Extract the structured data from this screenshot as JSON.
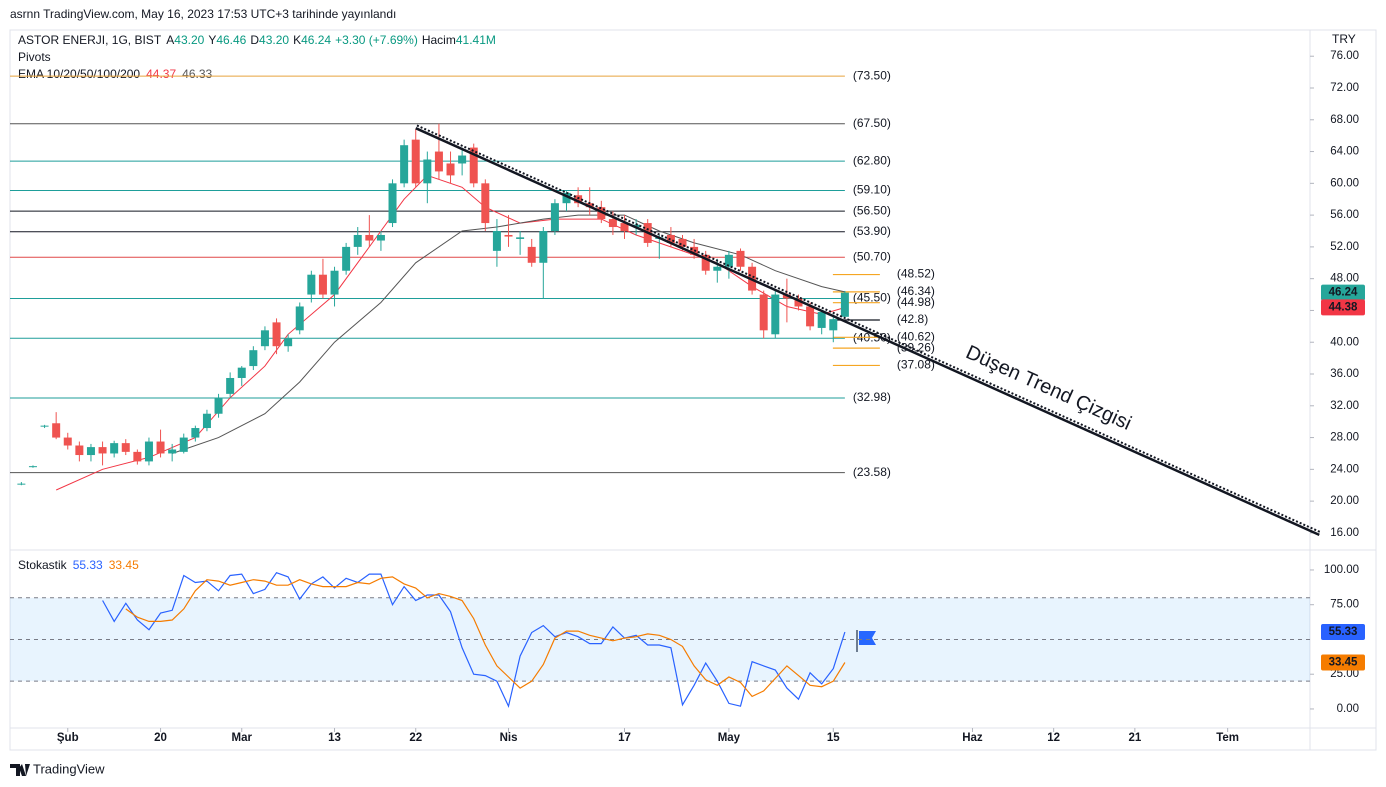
{
  "header": {
    "published": "asrnn TradingView.com, May 16, 2023 17:53 UTC+3 tarihinde yayınlandı",
    "currency": "TRY",
    "footer": "TradingView"
  },
  "chart_data": [
    {
      "type": "candlestick",
      "title": "ASTOR ENERJI, 1G, BIST",
      "ohlc": [
        {
          "key": "A",
          "value": "43.20"
        },
        {
          "key": "Y",
          "value": "46.46"
        },
        {
          "key": "D",
          "value": "43.20"
        },
        {
          "key": "K",
          "value": "46.24"
        }
      ],
      "change": "+3.30 (+7.69%)",
      "volume_key": "Hacim",
      "volume": "41.41M",
      "indicator": "Pivots",
      "ema_legend": {
        "name": "EMA 10/20/50/100/200",
        "values": [
          "44.37",
          "46.33"
        ]
      },
      "colors": {
        "up": "#26a69a",
        "down": "#ef5350"
      },
      "xlim": [
        -0.98,
        111.1
      ],
      "xticks": [
        {
          "value": 4,
          "label": "Şub"
        },
        {
          "value": 12,
          "label": "20"
        },
        {
          "value": 19,
          "label": "Mar"
        },
        {
          "value": 27,
          "label": "13"
        },
        {
          "value": 34,
          "label": "22"
        },
        {
          "value": 42,
          "label": "Nis"
        },
        {
          "value": 52,
          "label": "17"
        },
        {
          "value": 61,
          "label": "May"
        },
        {
          "value": 70,
          "label": "15"
        },
        {
          "value": 82,
          "label": "Haz"
        },
        {
          "value": 89,
          "label": "12"
        },
        {
          "value": 96,
          "label": "21"
        },
        {
          "value": 104,
          "label": "Tem"
        }
      ],
      "ylim": [
        14.1,
        79.3
      ],
      "yticks": [
        {
          "value": 76,
          "label": "76.00"
        },
        {
          "value": 72,
          "label": "72.00"
        },
        {
          "value": 68,
          "label": "68.00"
        },
        {
          "value": 64,
          "label": "64.00"
        },
        {
          "value": 60,
          "label": "60.00"
        },
        {
          "value": 56,
          "label": "56.00"
        },
        {
          "value": 52,
          "label": "52.00"
        },
        {
          "value": 48,
          "label": "48.00"
        },
        {
          "value": 44,
          "label": "44.00"
        },
        {
          "value": 40,
          "label": "40.00"
        },
        {
          "value": 36,
          "label": "36.00"
        },
        {
          "value": 32,
          "label": "32.00"
        },
        {
          "value": 28,
          "label": "28.00"
        },
        {
          "value": 24,
          "label": "24.00"
        },
        {
          "value": 20,
          "label": "20.00"
        },
        {
          "value": 16,
          "label": "16.00"
        }
      ],
      "candles": {
        "open": [
          22.2,
          24.3,
          29.4,
          29.8,
          28.0,
          27.0,
          25.8,
          26.8,
          26.0,
          27.3,
          26.2,
          25.0,
          27.5,
          26.0,
          26.2,
          28.0,
          29.2,
          31.0,
          33.5,
          35.5,
          37.0,
          39.5,
          42.5,
          39.5,
          41.5,
          46.0,
          48.5,
          46.0,
          49.0,
          52.0,
          53.5,
          52.8,
          55.0,
          60.0,
          65.5,
          60.0,
          64.0,
          62.5,
          62.5,
          64.5,
          60.0,
          51.5,
          53.5,
          53.0,
          52.0,
          50.0,
          54.0,
          57.5,
          58.5,
          57.5,
          57.0,
          55.5,
          55.0,
          54.5,
          55.0,
          53.0,
          53.5,
          53.0,
          52.0,
          51.0,
          49.0,
          49.5,
          51.5,
          49.5,
          46.0,
          41.0,
          46.0,
          45.5,
          44.5,
          41.8,
          41.5,
          43.2
        ],
        "high": [
          22.4,
          24.5,
          29.6,
          31.2,
          28.6,
          27.5,
          27.2,
          27.5,
          27.6,
          27.8,
          26.5,
          28.0,
          29.0,
          27.2,
          28.5,
          29.5,
          31.5,
          33.5,
          36.2,
          37.0,
          39.5,
          42.0,
          43.0,
          41.0,
          45.0,
          49.0,
          50.5,
          49.5,
          52.5,
          54.5,
          56.0,
          54.0,
          60.5,
          65.5,
          66.8,
          64.0,
          67.5,
          64.0,
          64.5,
          65.0,
          60.5,
          55.5,
          56.0,
          54.0,
          53.0,
          54.5,
          58.0,
          59.0,
          59.5,
          59.5,
          57.8,
          56.5,
          56.0,
          55.5,
          55.5,
          53.5,
          54.5,
          53.5,
          53.0,
          51.5,
          50.5,
          51.5,
          51.8,
          50.0,
          46.5,
          46.5,
          48.0,
          46.0,
          45.0,
          44.0,
          43.5,
          46.46
        ],
        "low": [
          22.0,
          24.2,
          29.2,
          27.8,
          26.5,
          25.0,
          25.0,
          24.5,
          25.5,
          25.8,
          24.6,
          24.5,
          25.5,
          25.0,
          26.0,
          27.5,
          28.8,
          30.5,
          33.0,
          34.5,
          36.5,
          39.0,
          38.5,
          38.8,
          41.0,
          45.0,
          45.5,
          44.5,
          48.5,
          51.0,
          52.0,
          51.5,
          54.5,
          59.5,
          59.5,
          57.5,
          60.5,
          60.0,
          61.0,
          59.5,
          54.0,
          49.5,
          52.0,
          51.0,
          49.5,
          45.5,
          53.5,
          56.5,
          57.0,
          56.0,
          55.0,
          53.5,
          53.0,
          53.5,
          52.0,
          50.5,
          52.0,
          51.5,
          50.5,
          48.5,
          47.5,
          48.0,
          49.0,
          46.0,
          40.5,
          40.5,
          42.5,
          44.0,
          41.5,
          41.0,
          40.0,
          43.2
        ],
        "close": [
          22.2,
          24.4,
          29.5,
          28.0,
          27.0,
          25.8,
          26.8,
          26.0,
          27.3,
          26.2,
          25.0,
          27.5,
          26.0,
          26.5,
          28.0,
          29.2,
          31.0,
          33.0,
          35.5,
          36.8,
          39.0,
          41.5,
          39.5,
          40.5,
          44.5,
          48.5,
          46.0,
          49.0,
          52.0,
          53.5,
          52.8,
          53.5,
          60.0,
          64.8,
          60.0,
          63.0,
          61.5,
          61.0,
          63.5,
          60.0,
          55.0,
          54.0,
          53.3,
          53.2,
          50.0,
          54.0,
          57.5,
          58.8,
          57.5,
          57.0,
          55.5,
          54.5,
          54.0,
          54.8,
          52.5,
          53.2,
          52.5,
          52.0,
          51.0,
          49.0,
          49.5,
          51.0,
          49.5,
          46.5,
          41.5,
          46.0,
          45.5,
          44.5,
          42.0,
          43.8,
          42.9,
          46.24
        ]
      },
      "series": [
        {
          "color": "#f23645",
          "x": [
            3,
            7,
            11,
            15,
            18,
            21,
            23,
            27,
            29,
            31,
            33,
            35,
            38,
            40,
            43,
            46,
            50,
            53,
            57,
            60,
            63,
            66,
            69,
            71
          ],
          "values": [
            21.4,
            24,
            25.5,
            28,
            33,
            37,
            41,
            46,
            50,
            54,
            58,
            61,
            59.5,
            57,
            55,
            55.5,
            55.5,
            53.5,
            51.5,
            50,
            47,
            44.5,
            43.5,
            44.37
          ]
        },
        {
          "color": "#555555",
          "x": [
            13,
            17,
            21,
            24,
            27,
            31,
            34,
            38,
            41,
            45,
            48,
            52,
            55,
            58,
            62,
            65,
            69,
            71
          ],
          "values": [
            26,
            28,
            31,
            35,
            40,
            45,
            50,
            54,
            54.5,
            55.5,
            56,
            56,
            54,
            52.5,
            51,
            49,
            47,
            46.33
          ]
        }
      ],
      "pivots": [
        {
          "value": 73.5,
          "label": "(73.50)",
          "color": "#e8a33d"
        },
        {
          "value": 67.5,
          "label": "(67.50)",
          "color": "#555555"
        },
        {
          "value": 62.8,
          "label": "(62.80)",
          "color": "#1e9e9a"
        },
        {
          "value": 59.1,
          "label": "(59.10)",
          "color": "#1e9e9a"
        },
        {
          "value": 56.5,
          "label": "(56.50)",
          "color": "#131722"
        },
        {
          "value": 53.9,
          "label": "(53.90)",
          "color": "#131722"
        },
        {
          "value": 50.7,
          "label": "(50.70)",
          "color": "#e04848"
        },
        {
          "value": 45.5,
          "label": "(45.50)",
          "color": "#1e9e9a"
        },
        {
          "value": 40.5,
          "label": "(40.50)",
          "color": "#1e9e9a"
        },
        {
          "value": 32.98,
          "label": "(32.98)",
          "color": "#1e9e9a"
        },
        {
          "value": 23.58,
          "label": "(23.58)",
          "color": "#555555"
        }
      ],
      "current_pivots": [
        {
          "value": 48.52,
          "label": "(48.52)",
          "color": "#f5a623"
        },
        {
          "value": 46.34,
          "label": "(46.34)",
          "color": "#f5a623"
        },
        {
          "value": 44.98,
          "label": "(44.98)",
          "color": "#f5a623"
        },
        {
          "value": 42.8,
          "label": "(42.8)",
          "color": "#131722"
        },
        {
          "value": 40.62,
          "label": "(40.62)",
          "color": "#f5a623"
        },
        {
          "value": 39.26,
          "label": "(39.26)",
          "color": "#f5a623"
        },
        {
          "value": 37.08,
          "label": "(37.08)",
          "color": "#f5a623"
        }
      ],
      "price_labels": [
        {
          "value": 44.38,
          "color": "#f23645"
        }
      ],
      "annotation": {
        "text": "Düşen Trend Çizgisi",
        "x": [
          34,
          111.9
        ],
        "y": [
          66.94,
          15.75
        ]
      }
    },
    {
      "type": "line",
      "title": "Stokastik",
      "legend_values": [
        "55.33",
        "33.45"
      ],
      "ylim": [
        -13.7,
        112.2
      ],
      "yticks": [
        {
          "value": 100,
          "label": "100.00"
        },
        {
          "value": 75,
          "label": "75.00"
        },
        {
          "value": 25,
          "label": "25.00"
        },
        {
          "value": 0,
          "label": "0.00"
        }
      ],
      "band": [
        20,
        80
      ],
      "midline": 50,
      "series": [
        {
          "color": "#2962ff",
          "values": [
            null,
            null,
            null,
            null,
            null,
            null,
            null,
            78,
            63,
            76,
            64,
            57,
            69,
            71,
            96,
            91,
            92,
            85,
            96,
            97,
            83,
            86,
            98,
            95,
            79,
            90,
            95,
            87,
            94,
            91,
            97,
            97,
            75,
            88,
            78,
            82,
            82,
            70,
            44,
            25,
            24,
            20,
            2,
            38,
            55,
            60,
            52,
            55,
            52,
            47,
            47,
            59,
            51,
            53,
            46,
            46,
            44,
            3,
            17,
            33,
            20,
            4,
            2,
            34,
            31,
            28,
            15,
            7,
            26,
            18,
            29,
            55.33
          ]
        },
        {
          "color": "#f57c00",
          "values": [
            null,
            null,
            null,
            null,
            null,
            null,
            null,
            null,
            null,
            72,
            66,
            63,
            63,
            64,
            72,
            85,
            93,
            92,
            89,
            91,
            93,
            92,
            89,
            89,
            93,
            90,
            88,
            88,
            88,
            91,
            90,
            94,
            95,
            90,
            87,
            80,
            83,
            81,
            78,
            65,
            46,
            31,
            23,
            15,
            20,
            32,
            51,
            56,
            56,
            53,
            51,
            49,
            51,
            52,
            54,
            53,
            50,
            45,
            31,
            21,
            17,
            23,
            19,
            9,
            13,
            22,
            31,
            24,
            17,
            16,
            20,
            33.45
          ]
        }
      ]
    }
  ]
}
